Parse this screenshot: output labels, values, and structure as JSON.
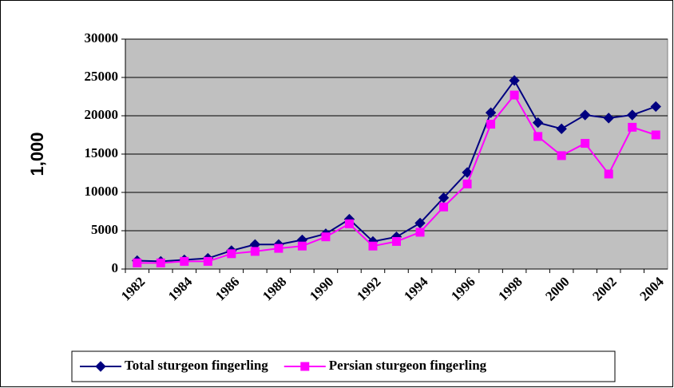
{
  "chart_data": {
    "type": "line",
    "y_label": "1,000",
    "categories": [
      "1982",
      null,
      "1984",
      null,
      "1986",
      null,
      "1988",
      null,
      "1990",
      null,
      "1992",
      null,
      "1994",
      null,
      "1996",
      null,
      "1998",
      null,
      "2000",
      null,
      "2002",
      null,
      "2004"
    ],
    "series": [
      {
        "name": "Total sturgeon fingerling",
        "color": "#000080",
        "marker": "diamond",
        "values": [
          1100,
          1000,
          1200,
          1400,
          2400,
          3200,
          3200,
          3800,
          4600,
          6500,
          3600,
          4200,
          6000,
          9300,
          12600,
          20400,
          24600,
          19100,
          18300,
          20100,
          19700,
          20100,
          21200
        ]
      },
      {
        "name": "Persian sturgeon fingerling",
        "color": "#ff00ff",
        "marker": "square",
        "values": [
          800,
          800,
          1000,
          1000,
          2000,
          2300,
          2700,
          3000,
          4200,
          5900,
          3000,
          3600,
          4800,
          8100,
          11100,
          18900,
          22700,
          17300,
          14800,
          16400,
          12400,
          18500,
          17500
        ]
      }
    ],
    "ylim": [
      0,
      30000
    ],
    "yticks": [
      0,
      5000,
      10000,
      15000,
      20000,
      25000,
      30000
    ],
    "grid": true,
    "plot_background": "#c0c0c0",
    "legend": "bottom"
  }
}
